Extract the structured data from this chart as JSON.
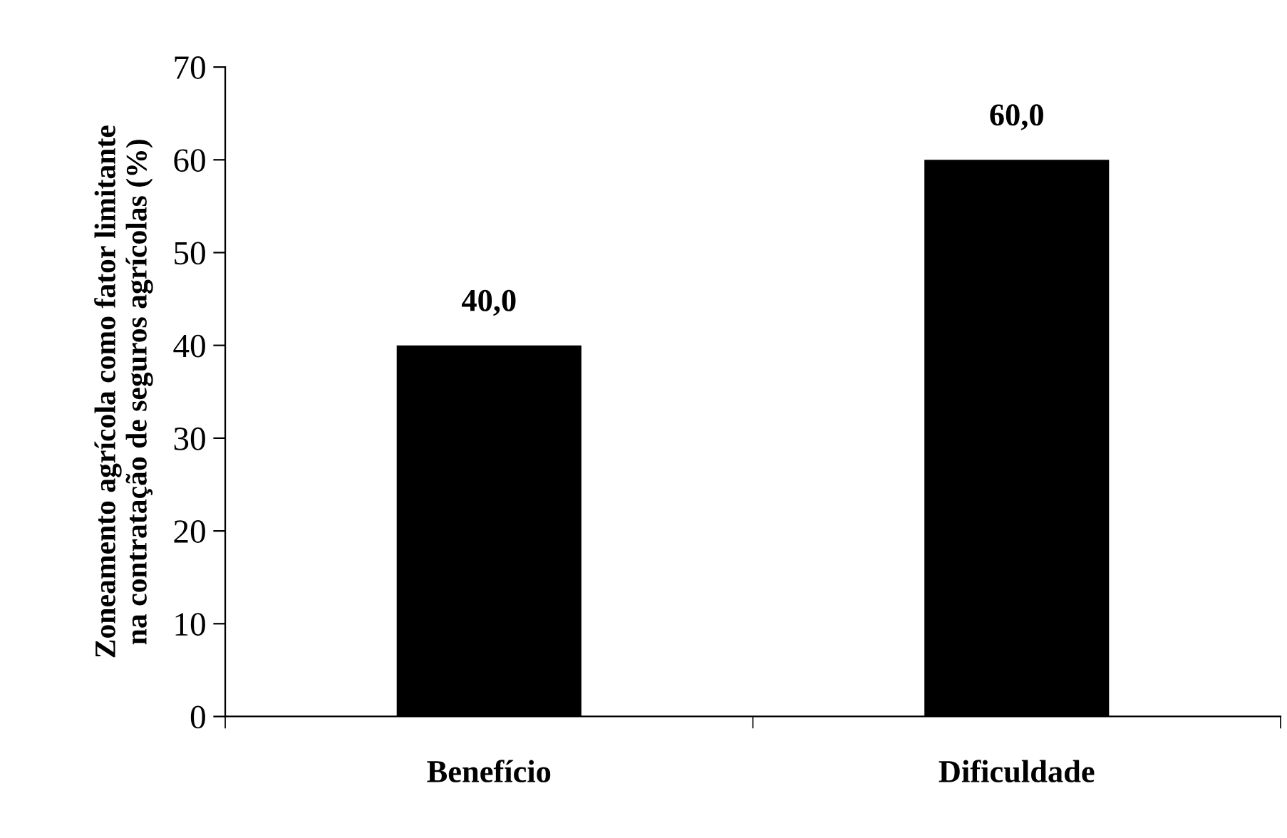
{
  "chart_data": {
    "type": "bar",
    "ylabel": "Zoneamento agrícola como fator limitante\nna contratação de seguros agrícolas (%)",
    "categories": [
      "Benefício",
      "Dificuldade"
    ],
    "values": [
      40.0,
      60.0
    ],
    "color": "#000000",
    "value_labels": [
      "40,0",
      "60,0"
    ],
    "ylim": [
      0,
      70
    ],
    "yticks": [
      0,
      10,
      20,
      30,
      40,
      50,
      60,
      70
    ],
    "grid": false,
    "legend": false
  }
}
